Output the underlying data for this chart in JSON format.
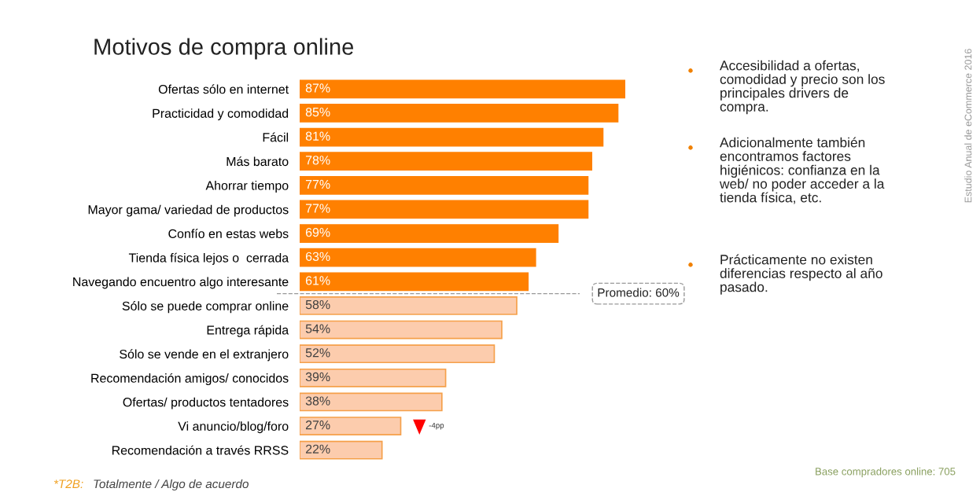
{
  "chart_data": {
    "type": "bar",
    "orientation": "horizontal",
    "title": "Motivos de compra online",
    "categories": [
      "Ofertas sólo en internet",
      "Practicidad y comodidad",
      "Fácil",
      "Más barato",
      "Ahorrar tiempo",
      "Mayor gama/ variedad de productos",
      "Confío en estas webs",
      "Tienda física lejos o  cerrada",
      "Navegando encuentro algo interesante",
      "Sólo se puede comprar online",
      "Entrega rápida",
      "Sólo se vende en el extranjero",
      "Recomendación amigos/ conocidos",
      "Ofertas/ productos tentadores",
      "Vi anuncio/blog/foro",
      "Recomendación a través RRSS"
    ],
    "values": [
      87,
      85,
      81,
      78,
      77,
      77,
      69,
      63,
      61,
      58,
      54,
      52,
      39,
      38,
      27,
      22
    ],
    "value_labels": [
      "87%",
      "85%",
      "81%",
      "78%",
      "77%",
      "77%",
      "69%",
      "63%",
      "61%",
      "58%",
      "54%",
      "52%",
      "39%",
      "38%",
      "27%",
      "22%"
    ],
    "colors": [
      "#ff8000",
      "#ff8000",
      "#ff8000",
      "#ff8000",
      "#ff8000",
      "#ff8000",
      "#ff8000",
      "#ff8000",
      "#ff8000",
      "#fcccad",
      "#fcccad",
      "#fcccad",
      "#fcccad",
      "#fcccad",
      "#fcccad",
      "#fcccad"
    ],
    "annotations": [
      "-4pp",
      "Promedio: 60%",
      "Accesibilidad a ofertas,\ncomodidad y precio son los\nprincipales drivers de\ncompra.",
      "Adicionalmente también\nencontramos factores\nhigiénicos: confianza en la\nweb/ no poder acceder a la\ntienda física, etc.",
      "Prácticamente no existen\ndiferencias respecto al año\npasado.",
      "*T2B:",
      "Totalmente / Algo de acuerdo",
      "Base compradores online: 705",
      "Estudio Anual de eCommerce 2016"
    ]
  }
}
